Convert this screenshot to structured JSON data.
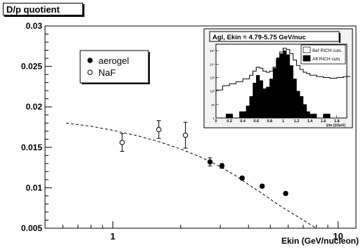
{
  "title": "D/p quotient",
  "chart_data": {
    "type": "scatter",
    "xlabel": "Ekin (GeV/nucleon)",
    "ylabel": "",
    "xscale": "log",
    "xlim": [
      0.5,
      12
    ],
    "ylim": [
      0.005,
      0.03
    ],
    "x_ticks": [
      {
        "value": 1,
        "label": "1"
      },
      {
        "value": 10,
        "label": "10"
      }
    ],
    "y_ticks": [
      {
        "value": 0.005,
        "label": "0.005"
      },
      {
        "value": 0.01,
        "label": "0.01"
      },
      {
        "value": 0.015,
        "label": "0.015"
      },
      {
        "value": 0.02,
        "label": "0.02"
      },
      {
        "value": 0.025,
        "label": "0.025"
      },
      {
        "value": 0.03,
        "label": "0.03"
      }
    ],
    "legend": {
      "placement": "upper-left"
    },
    "series": [
      {
        "name": "aerogel",
        "marker": "filled-circle",
        "points": [
          {
            "x": 2.7,
            "y": 0.0132,
            "err": 0.0005
          },
          {
            "x": 3.05,
            "y": 0.0127,
            "err": 0.0003
          },
          {
            "x": 3.75,
            "y": 0.0112,
            "err": 0.0002
          },
          {
            "x": 4.6,
            "y": 0.0102,
            "err": 0.0002
          },
          {
            "x": 5.85,
            "y": 0.0093,
            "err": 0.0002
          }
        ]
      },
      {
        "name": "NaF",
        "marker": "open-circle",
        "points": [
          {
            "x": 1.1,
            "y": 0.0156,
            "err": 0.0011
          },
          {
            "x": 1.6,
            "y": 0.0172,
            "err": 0.0011
          },
          {
            "x": 2.1,
            "y": 0.0165,
            "err": 0.0016
          }
        ]
      }
    ],
    "curve": {
      "style": "dashed",
      "x": [
        0.62,
        0.8,
        1.0,
        1.3,
        1.6,
        2.0,
        2.5,
        3.0,
        3.5,
        4.0,
        4.6,
        5.3,
        6.2,
        7.2,
        8.0
      ],
      "y": [
        0.018,
        0.0176,
        0.0171,
        0.0164,
        0.0157,
        0.0148,
        0.0137,
        0.0126,
        0.0115,
        0.0104,
        0.0093,
        0.0081,
        0.0069,
        0.0058,
        0.005
      ]
    },
    "inset": {
      "type": "histogram",
      "title": "Agl, Ekin = 4.79-5.75 GeV/nuc",
      "xlabel": "1/m (1/GeV)",
      "yscale": "log",
      "x_ticks": [
        {
          "value": 0,
          "label": "0"
        },
        {
          "value": 0.2,
          "label": "0.2"
        },
        {
          "value": 0.4,
          "label": "0.4"
        },
        {
          "value": 0.6,
          "label": "0.6"
        },
        {
          "value": 0.8,
          "label": "0.8"
        },
        {
          "value": 1,
          "label": "1"
        },
        {
          "value": 1.2,
          "label": "1.2"
        },
        {
          "value": 1.4,
          "label": "1.4"
        },
        {
          "value": 1.6,
          "label": "1.6"
        },
        {
          "value": 1.8,
          "label": "1.8"
        }
      ],
      "y_ticks": [
        {
          "value": 1,
          "label": "1"
        },
        {
          "value": 10,
          "label": "10"
        },
        {
          "value": 100,
          "label": "10²"
        },
        {
          "value": 1000,
          "label": "10³"
        },
        {
          "value": 10000,
          "label": "10⁴"
        },
        {
          "value": 100000,
          "label": "10⁵"
        }
      ],
      "xlim": [
        0,
        1.95
      ],
      "ylim": [
        1,
        300000
      ],
      "legend": [
        {
          "label": "Bef RICH cuts",
          "fill": "#ffffff"
        },
        {
          "label": "Aft RICH cuts",
          "fill": "#000000"
        }
      ],
      "before": {
        "x": [
          0.0,
          0.1,
          0.2,
          0.3,
          0.4,
          0.5,
          0.55,
          0.6,
          0.65,
          0.7,
          0.75,
          0.8,
          0.85,
          0.9,
          0.95,
          1.0,
          1.05,
          1.1,
          1.15,
          1.2,
          1.25,
          1.3,
          1.35,
          1.4,
          1.5,
          1.6,
          1.7,
          1.8,
          1.9
        ],
        "y": [
          120,
          250,
          350,
          500,
          800,
          1500,
          3000,
          6000,
          5000,
          3000,
          2500,
          3000,
          6000,
          20000,
          80000,
          150000,
          120000,
          60000,
          20000,
          8000,
          4000,
          2500,
          2000,
          1500,
          1200,
          1000,
          900,
          1000,
          1200
        ]
      },
      "after": {
        "x": [
          0.05,
          0.15,
          0.25,
          0.35,
          0.45,
          0.5,
          0.55,
          0.6,
          0.65,
          0.7,
          0.75,
          0.8,
          0.85,
          0.9,
          0.95,
          1.0,
          1.05,
          1.1,
          1.15,
          1.2,
          1.25,
          1.3,
          1.35,
          1.4,
          1.5,
          1.6,
          1.7,
          1.8
        ],
        "y": [
          1,
          2,
          1,
          3,
          8,
          40,
          400,
          1500,
          600,
          150,
          200,
          800,
          5000,
          30000,
          60000,
          100000,
          50000,
          8000,
          800,
          100,
          40,
          10,
          3,
          2,
          1,
          2,
          1,
          1
        ]
      }
    }
  }
}
